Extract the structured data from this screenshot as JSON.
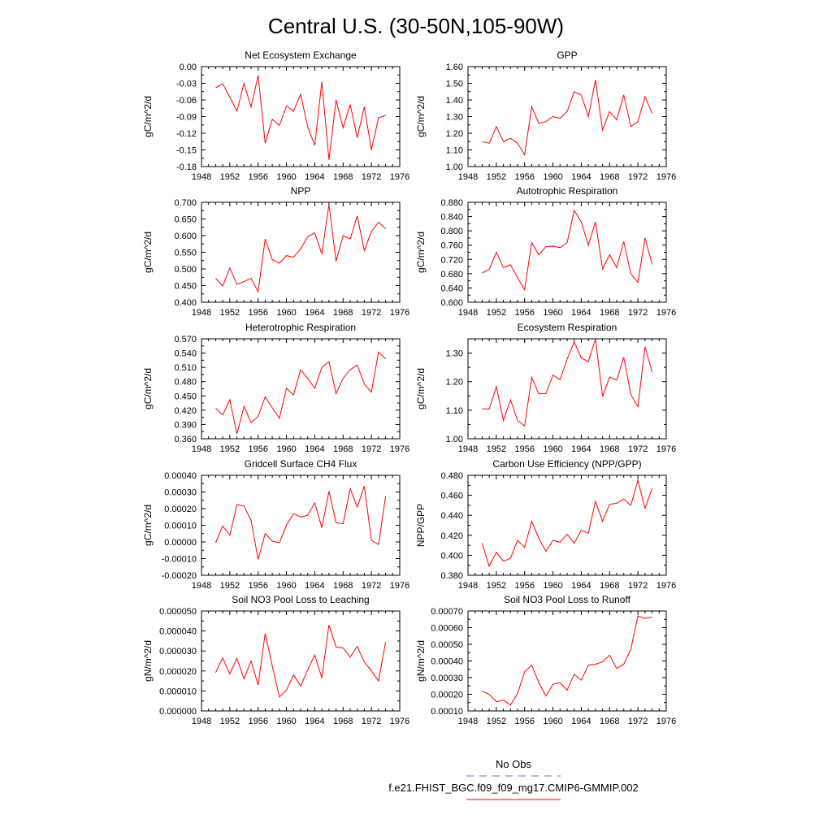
{
  "figure": {
    "title": "Central U.S. (30-50N,105-90W)",
    "legend": {
      "obs_label": "No Obs",
      "obs_color": "#6b6bd6",
      "model_label": "f.e21.FHIST_BGC.f09_f09_mg17.CMIP6-GMMIP.002",
      "model_color": "#ff0000"
    }
  },
  "chart_data": [
    {
      "type": "line",
      "title": "Net Ecosystem Exchange",
      "ylabel": "gC/m^2/d",
      "xlim": [
        1948,
        1976
      ],
      "xticks": [
        "1948",
        "1952",
        "1956",
        "1960",
        "1964",
        "1968",
        "1972",
        "1976"
      ],
      "ylim": [
        -0.18,
        0.0
      ],
      "yticks": [
        "0.00",
        "-0.03",
        "-0.06",
        "-0.09",
        "-0.12",
        "-0.15",
        "-0.18"
      ],
      "ytick_values": [
        0.0,
        -0.03,
        -0.06,
        -0.09,
        -0.12,
        -0.15,
        -0.18
      ],
      "series": [
        {
          "color": "#ff0000",
          "x": [
            1950,
            1951,
            1952,
            1953,
            1954,
            1955,
            1956,
            1957,
            1958,
            1959,
            1960,
            1961,
            1962,
            1963,
            1964,
            1965,
            1966,
            1967,
            1968,
            1969,
            1970,
            1971,
            1972,
            1973,
            1974
          ],
          "y": [
            -0.038,
            -0.031,
            -0.055,
            -0.08,
            -0.03,
            -0.073,
            -0.016,
            -0.138,
            -0.095,
            -0.106,
            -0.071,
            -0.08,
            -0.05,
            -0.108,
            -0.142,
            -0.027,
            -0.168,
            -0.06,
            -0.11,
            -0.068,
            -0.128,
            -0.072,
            -0.15,
            -0.092,
            -0.088
          ]
        }
      ]
    },
    {
      "type": "line",
      "title": "GPP",
      "ylabel": "gC/m^2/d",
      "xlim": [
        1948,
        1976
      ],
      "xticks": [
        "1948",
        "1952",
        "1956",
        "1960",
        "1964",
        "1968",
        "1972",
        "1976"
      ],
      "ylim": [
        1.0,
        1.6
      ],
      "yticks": [
        "1.60",
        "1.50",
        "1.40",
        "1.30",
        "1.20",
        "1.10",
        "1.00"
      ],
      "ytick_values": [
        1.6,
        1.5,
        1.4,
        1.3,
        1.2,
        1.1,
        1.0
      ],
      "series": [
        {
          "color": "#ff0000",
          "x": [
            1950,
            1951,
            1952,
            1953,
            1954,
            1955,
            1956,
            1957,
            1958,
            1959,
            1960,
            1961,
            1962,
            1963,
            1964,
            1965,
            1966,
            1967,
            1968,
            1969,
            1970,
            1971,
            1972,
            1973,
            1974
          ],
          "y": [
            1.15,
            1.14,
            1.24,
            1.15,
            1.17,
            1.14,
            1.07,
            1.36,
            1.26,
            1.27,
            1.3,
            1.29,
            1.33,
            1.45,
            1.43,
            1.3,
            1.52,
            1.22,
            1.33,
            1.28,
            1.43,
            1.24,
            1.27,
            1.42,
            1.32
          ]
        }
      ]
    },
    {
      "type": "line",
      "title": "NPP",
      "ylabel": "gC/m^2/d",
      "xlim": [
        1948,
        1976
      ],
      "xticks": [
        "1948",
        "1952",
        "1956",
        "1960",
        "1964",
        "1968",
        "1972",
        "1976"
      ],
      "ylim": [
        0.4,
        0.7
      ],
      "yticks": [
        "0.700",
        "0.650",
        "0.600",
        "0.550",
        "0.500",
        "0.450",
        "0.400"
      ],
      "ytick_values": [
        0.7,
        0.65,
        0.6,
        0.55,
        0.5,
        0.45,
        0.4
      ],
      "series": [
        {
          "color": "#ff0000",
          "x": [
            1950,
            1951,
            1952,
            1953,
            1954,
            1955,
            1956,
            1957,
            1958,
            1959,
            1960,
            1961,
            1962,
            1963,
            1964,
            1965,
            1966,
            1967,
            1968,
            1969,
            1970,
            1971,
            1972,
            1973,
            1974
          ],
          "y": [
            0.472,
            0.449,
            0.503,
            0.454,
            0.462,
            0.472,
            0.432,
            0.59,
            0.528,
            0.517,
            0.54,
            0.535,
            0.56,
            0.597,
            0.608,
            0.545,
            0.694,
            0.523,
            0.6,
            0.59,
            0.659,
            0.555,
            0.612,
            0.64,
            0.62
          ]
        }
      ]
    },
    {
      "type": "line",
      "title": "Autotrophic Respiration",
      "ylabel": "gC/m^2/d",
      "xlim": [
        1948,
        1976
      ],
      "xticks": [
        "1948",
        "1952",
        "1956",
        "1960",
        "1964",
        "1968",
        "1972",
        "1976"
      ],
      "ylim": [
        0.6,
        0.88
      ],
      "yticks": [
        "0.880",
        "0.840",
        "0.800",
        "0.760",
        "0.720",
        "0.680",
        "0.640",
        "0.600"
      ],
      "ytick_values": [
        0.88,
        0.84,
        0.8,
        0.76,
        0.72,
        0.68,
        0.64,
        0.6
      ],
      "series": [
        {
          "color": "#ff0000",
          "x": [
            1950,
            1951,
            1952,
            1953,
            1954,
            1955,
            1956,
            1957,
            1958,
            1959,
            1960,
            1961,
            1962,
            1963,
            1964,
            1965,
            1966,
            1967,
            1968,
            1969,
            1970,
            1971,
            1972,
            1973,
            1974
          ],
          "y": [
            0.682,
            0.692,
            0.74,
            0.697,
            0.705,
            0.669,
            0.635,
            0.767,
            0.733,
            0.756,
            0.757,
            0.753,
            0.767,
            0.857,
            0.825,
            0.76,
            0.825,
            0.693,
            0.733,
            0.697,
            0.77,
            0.68,
            0.656,
            0.78,
            0.706
          ]
        }
      ]
    },
    {
      "type": "line",
      "title": "Heterotrophic Respiration",
      "ylabel": "gC/m^2/d",
      "xlim": [
        1948,
        1976
      ],
      "xticks": [
        "1948",
        "1952",
        "1956",
        "1960",
        "1964",
        "1968",
        "1972",
        "1976"
      ],
      "ylim": [
        0.36,
        0.57
      ],
      "yticks": [
        "0.570",
        "0.540",
        "0.510",
        "0.480",
        "0.450",
        "0.420",
        "0.390",
        "0.360"
      ],
      "ytick_values": [
        0.57,
        0.54,
        0.51,
        0.48,
        0.45,
        0.42,
        0.39,
        0.36
      ],
      "series": [
        {
          "color": "#ff0000",
          "x": [
            1950,
            1951,
            1952,
            1953,
            1954,
            1955,
            1956,
            1957,
            1958,
            1959,
            1960,
            1961,
            1962,
            1963,
            1964,
            1965,
            1966,
            1967,
            1968,
            1969,
            1970,
            1971,
            1972,
            1973,
            1974
          ],
          "y": [
            0.424,
            0.41,
            0.442,
            0.37,
            0.428,
            0.394,
            0.407,
            0.448,
            0.425,
            0.403,
            0.466,
            0.452,
            0.505,
            0.487,
            0.466,
            0.51,
            0.522,
            0.455,
            0.487,
            0.505,
            0.515,
            0.475,
            0.458,
            0.542,
            0.528
          ]
        }
      ]
    },
    {
      "type": "line",
      "title": "Ecosystem Respiration",
      "ylabel": "gC/m^2/d",
      "xlim": [
        1948,
        1976
      ],
      "xticks": [
        "1948",
        "1952",
        "1956",
        "1960",
        "1964",
        "1968",
        "1972",
        "1976"
      ],
      "ylim": [
        1.0,
        1.35
      ],
      "yticks": [
        "1.30",
        "1.20",
        "1.10",
        "1.00"
      ],
      "ytick_values": [
        1.3,
        1.2,
        1.1,
        1.0
      ],
      "series": [
        {
          "color": "#ff0000",
          "x": [
            1950,
            1951,
            1952,
            1953,
            1954,
            1955,
            1956,
            1957,
            1958,
            1959,
            1960,
            1961,
            1962,
            1963,
            1964,
            1965,
            1966,
            1967,
            1968,
            1969,
            1970,
            1971,
            1972,
            1973,
            1974
          ],
          "y": [
            1.105,
            1.104,
            1.182,
            1.064,
            1.137,
            1.064,
            1.045,
            1.215,
            1.157,
            1.158,
            1.223,
            1.207,
            1.279,
            1.34,
            1.283,
            1.27,
            1.35,
            1.148,
            1.216,
            1.205,
            1.285,
            1.155,
            1.112,
            1.322,
            1.233
          ]
        }
      ]
    },
    {
      "type": "line",
      "title": "Gridcell Surface CH4 Flux",
      "ylabel": "gC/m^2/d",
      "xlim": [
        1948,
        1976
      ],
      "xticks": [
        "1948",
        "1952",
        "1956",
        "1960",
        "1964",
        "1968",
        "1972",
        "1976"
      ],
      "ylim": [
        -0.0002,
        0.0004
      ],
      "yticks": [
        "0.00040",
        "0.00030",
        "0.00020",
        "0.00010",
        "0.00000",
        "-0.00010",
        "-0.00020"
      ],
      "ytick_values": [
        0.0004,
        0.0003,
        0.0002,
        0.0001,
        0.0,
        -0.0001,
        -0.0002
      ],
      "series": [
        {
          "color": "#ff0000",
          "x": [
            1950,
            1951,
            1952,
            1953,
            1954,
            1955,
            1956,
            1957,
            1958,
            1959,
            1960,
            1961,
            1962,
            1963,
            1964,
            1965,
            1966,
            1967,
            1968,
            1969,
            1970,
            1971,
            1972,
            1973,
            1974
          ],
          "y": [
            -5e-06,
            9.5e-05,
            4e-05,
            0.000225,
            0.000215,
            0.00013,
            -0.000105,
            5e-05,
            5e-06,
            -5e-06,
            0.0001,
            0.00017,
            0.00015,
            0.00016,
            0.000235,
            8.5e-05,
            0.000305,
            0.000115,
            0.00011,
            0.00032,
            0.00021,
            0.000335,
            1e-05,
            -1.5e-05,
            0.000275
          ]
        }
      ]
    },
    {
      "type": "line",
      "title": "Carbon Use Efficiency (NPP/GPP)",
      "ylabel": "NPP/GPP",
      "xlim": [
        1948,
        1976
      ],
      "xticks": [
        "1948",
        "1952",
        "1956",
        "1960",
        "1964",
        "1968",
        "1972",
        "1976"
      ],
      "ylim": [
        0.38,
        0.48
      ],
      "yticks": [
        "0.480",
        "0.460",
        "0.440",
        "0.420",
        "0.400",
        "0.380"
      ],
      "ytick_values": [
        0.48,
        0.46,
        0.44,
        0.42,
        0.4,
        0.38
      ],
      "series": [
        {
          "color": "#ff0000",
          "x": [
            1950,
            1951,
            1952,
            1953,
            1954,
            1955,
            1956,
            1957,
            1958,
            1959,
            1960,
            1961,
            1962,
            1963,
            1964,
            1965,
            1966,
            1967,
            1968,
            1969,
            1970,
            1971,
            1972,
            1973,
            1974
          ],
          "y": [
            0.412,
            0.389,
            0.403,
            0.394,
            0.397,
            0.415,
            0.408,
            0.434,
            0.417,
            0.404,
            0.415,
            0.413,
            0.421,
            0.412,
            0.425,
            0.422,
            0.454,
            0.434,
            0.451,
            0.452,
            0.456,
            0.45,
            0.475,
            0.447,
            0.467
          ]
        }
      ]
    },
    {
      "type": "line",
      "title": "Soil NO3 Pool Loss to Leaching",
      "ylabel": "gN/m^2/d",
      "xlim": [
        1948,
        1976
      ],
      "xticks": [
        "1948",
        "1952",
        "1956",
        "1960",
        "1964",
        "1968",
        "1972",
        "1976"
      ],
      "ylim": [
        0.0,
        5e-05
      ],
      "yticks": [
        "0.000050",
        "0.000040",
        "0.000030",
        "0.000020",
        "0.000010",
        "0.000000"
      ],
      "ytick_values": [
        5e-05,
        4e-05,
        3e-05,
        2e-05,
        1e-05,
        0.0
      ],
      "series": [
        {
          "color": "#ff0000",
          "x": [
            1950,
            1951,
            1952,
            1953,
            1954,
            1955,
            1956,
            1957,
            1958,
            1959,
            1960,
            1961,
            1962,
            1963,
            1964,
            1965,
            1966,
            1967,
            1968,
            1969,
            1970,
            1971,
            1972,
            1973,
            1974
          ],
          "y": [
            1.92e-05,
            2.65e-05,
            1.85e-05,
            2.63e-05,
            1.6e-05,
            2.5e-05,
            1.3e-05,
            3.88e-05,
            2.25e-05,
            7e-06,
            1.05e-05,
            1.8e-05,
            1.25e-05,
            2.05e-05,
            2.8e-05,
            1.65e-05,
            4.3e-05,
            3.2e-05,
            3.15e-05,
            2.7e-05,
            3.23e-05,
            2.45e-05,
            2e-05,
            1.5e-05,
            3.45e-05
          ]
        }
      ]
    },
    {
      "type": "line",
      "title": "Soil NO3 Pool Loss to Runoff",
      "ylabel": "gN/m^2/d",
      "xlim": [
        1948,
        1976
      ],
      "xticks": [
        "1948",
        "1952",
        "1956",
        "1960",
        "1964",
        "1968",
        "1972",
        "1976"
      ],
      "ylim": [
        0.0001,
        0.0007
      ],
      "yticks": [
        "0.00070",
        "0.00060",
        "0.00050",
        "0.00040",
        "0.00030",
        "0.00020",
        "0.00010"
      ],
      "ytick_values": [
        0.0007,
        0.0006,
        0.0005,
        0.0004,
        0.0003,
        0.0002,
        0.0001
      ],
      "series": [
        {
          "color": "#ff0000",
          "x": [
            1950,
            1951,
            1952,
            1953,
            1954,
            1955,
            1956,
            1957,
            1958,
            1959,
            1960,
            1961,
            1962,
            1963,
            1964,
            1965,
            1966,
            1967,
            1968,
            1969,
            1970,
            1971,
            1972,
            1973,
            1974
          ],
          "y": [
            0.00022,
            0.0002,
            0.000155,
            0.000165,
            0.000135,
            0.000205,
            0.000335,
            0.000375,
            0.00027,
            0.00019,
            0.00026,
            0.00027,
            0.000225,
            0.00032,
            0.000285,
            0.000375,
            0.00038,
            0.000395,
            0.000435,
            0.000355,
            0.00038,
            0.00047,
            0.00067,
            0.000655,
            0.000665
          ]
        }
      ]
    }
  ]
}
